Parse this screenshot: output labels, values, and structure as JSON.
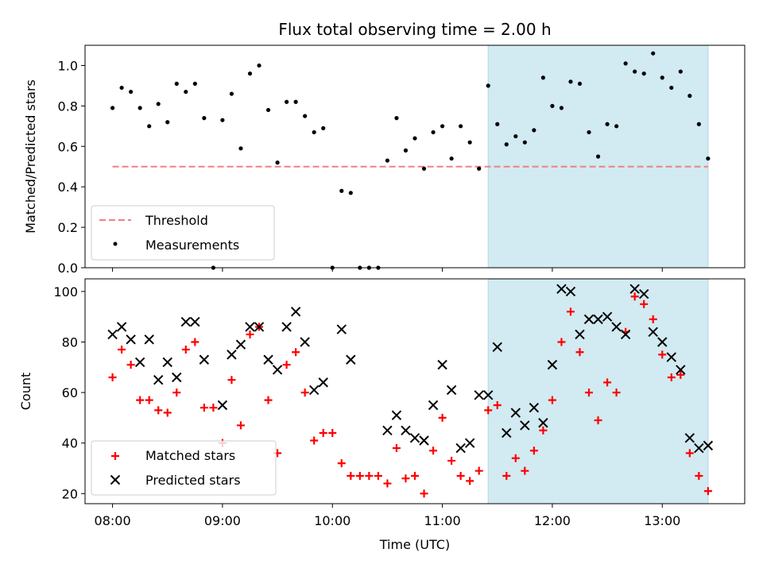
{
  "title": "Flux total observing time = 2.00 h",
  "colors": {
    "threshold": "#f08080",
    "measurement": "#000000",
    "matched": "#ff0000",
    "predicted": "#000000",
    "highlight": "#add8e6"
  },
  "chart_data": [
    {
      "type": "scatter",
      "panel": "top",
      "ylabel": "Matched/Predicted stars",
      "xlabel": "",
      "xlim": [
        "07:45",
        "13:45"
      ],
      "ylim": [
        0,
        1.1
      ],
      "yticks": [
        0.0,
        0.2,
        0.4,
        0.6,
        0.8,
        1.0
      ],
      "ytick_labels": [
        "0.0",
        "0.2",
        "0.4",
        "0.6",
        "0.8",
        "1.0"
      ],
      "highlight_span": [
        "11:25",
        "13:25"
      ],
      "threshold": {
        "label": "Threshold",
        "y": 0.5,
        "x": [
          "08:00",
          "13:25"
        ]
      },
      "legend": {
        "location": "lower-left",
        "entries": [
          "Threshold",
          "Measurements"
        ]
      },
      "series": [
        {
          "name": "Measurements",
          "x": [
            "08:00",
            "08:05",
            "08:10",
            "08:15",
            "08:20",
            "08:25",
            "08:30",
            "08:35",
            "08:40",
            "08:45",
            "08:50",
            "08:55",
            "09:00",
            "09:05",
            "09:10",
            "09:15",
            "09:20",
            "09:25",
            "09:30",
            "09:35",
            "09:40",
            "09:45",
            "09:50",
            "09:55",
            "10:00",
            "10:05",
            "10:10",
            "10:15",
            "10:20",
            "10:25",
            "10:30",
            "10:35",
            "10:40",
            "10:45",
            "10:50",
            "10:55",
            "11:00",
            "11:05",
            "11:10",
            "11:15",
            "11:20",
            "11:25",
            "11:30",
            "11:35",
            "11:40",
            "11:45",
            "11:50",
            "11:55",
            "12:00",
            "12:05",
            "12:10",
            "12:15",
            "12:20",
            "12:25",
            "12:30",
            "12:35",
            "12:40",
            "12:45",
            "12:50",
            "12:55",
            "13:00",
            "13:05",
            "13:10",
            "13:15",
            "13:20",
            "13:25"
          ],
          "y": [
            0.79,
            0.89,
            0.87,
            0.79,
            0.7,
            0.81,
            0.72,
            0.91,
            0.87,
            0.91,
            0.74,
            0.0,
            0.73,
            0.86,
            0.59,
            0.96,
            1.0,
            0.78,
            0.52,
            0.82,
            0.82,
            0.75,
            0.67,
            0.69,
            0.0,
            0.38,
            0.37,
            0.0,
            0.0,
            0.0,
            0.53,
            0.74,
            0.58,
            0.64,
            0.49,
            0.67,
            0.7,
            0.54,
            0.7,
            0.62,
            0.49,
            0.9,
            0.71,
            0.61,
            0.65,
            0.62,
            0.68,
            0.94,
            0.8,
            0.79,
            0.92,
            0.91,
            0.67,
            0.55,
            0.71,
            0.7,
            1.01,
            0.97,
            0.96,
            1.06,
            0.94,
            0.89,
            0.97,
            0.85,
            0.71,
            0.54
          ]
        }
      ]
    },
    {
      "type": "scatter",
      "panel": "bottom",
      "ylabel": "Count",
      "xlabel": "Time (UTC)",
      "xlim": [
        "07:45",
        "13:45"
      ],
      "ylim": [
        16,
        105
      ],
      "xticks": [
        "08:00",
        "09:00",
        "10:00",
        "11:00",
        "12:00",
        "13:00"
      ],
      "yticks": [
        20,
        40,
        60,
        80,
        100
      ],
      "ytick_labels": [
        "20",
        "40",
        "60",
        "80",
        "100"
      ],
      "highlight_span": [
        "11:25",
        "13:25"
      ],
      "legend": {
        "location": "lower-left",
        "entries": [
          "Matched stars",
          "Predicted stars"
        ]
      },
      "x": [
        "08:00",
        "08:05",
        "08:10",
        "08:15",
        "08:20",
        "08:25",
        "08:30",
        "08:35",
        "08:40",
        "08:45",
        "08:50",
        "08:55",
        "09:00",
        "09:05",
        "09:10",
        "09:15",
        "09:20",
        "09:25",
        "09:30",
        "09:35",
        "09:40",
        "09:45",
        "09:50",
        "09:55",
        "10:00",
        "10:05",
        "10:10",
        "10:15",
        "10:20",
        "10:25",
        "10:30",
        "10:35",
        "10:40",
        "10:45",
        "10:50",
        "10:55",
        "11:00",
        "11:05",
        "11:10",
        "11:15",
        "11:20",
        "11:25",
        "11:30",
        "11:35",
        "11:40",
        "11:45",
        "11:50",
        "11:55",
        "12:00",
        "12:05",
        "12:10",
        "12:15",
        "12:20",
        "12:25",
        "12:30",
        "12:35",
        "12:40",
        "12:45",
        "12:50",
        "12:55",
        "13:00",
        "13:05",
        "13:10",
        "13:15",
        "13:20",
        "13:25"
      ],
      "series": [
        {
          "name": "Matched stars",
          "marker": "plus",
          "values": [
            66,
            77,
            71,
            57,
            57,
            53,
            52,
            60,
            77,
            80,
            54,
            54,
            40,
            65,
            47,
            83,
            86,
            57,
            36,
            71,
            76,
            60,
            41,
            44,
            44,
            32,
            27,
            27,
            27,
            27,
            24,
            38,
            26,
            27,
            20,
            37,
            50,
            33,
            27,
            25,
            29,
            53,
            55,
            27,
            34,
            29,
            37,
            45,
            57,
            80,
            92,
            76,
            60,
            49,
            64,
            60,
            84,
            98,
            95,
            89,
            75,
            66,
            67,
            36,
            27,
            21
          ]
        },
        {
          "name": "Predicted stars",
          "marker": "x",
          "values": [
            83,
            86,
            81,
            72,
            81,
            65,
            72,
            66,
            88,
            88,
            73,
            null,
            55,
            75,
            79,
            86,
            86,
            73,
            69,
            86,
            92,
            80,
            61,
            64,
            null,
            85,
            73,
            null,
            null,
            null,
            45,
            51,
            45,
            42,
            41,
            55,
            71,
            61,
            38,
            40,
            59,
            59,
            78,
            44,
            52,
            47,
            54,
            48,
            71,
            101,
            100,
            83,
            89,
            89,
            90,
            86,
            83,
            101,
            99,
            84,
            80,
            74,
            69,
            42,
            38,
            39
          ]
        }
      ]
    }
  ]
}
